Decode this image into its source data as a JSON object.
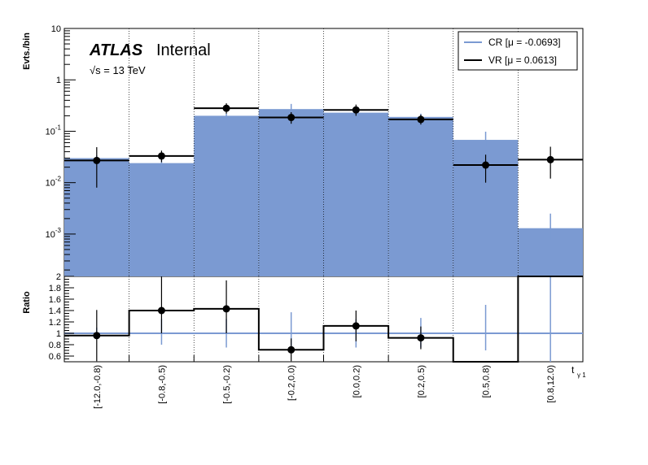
{
  "labels": {
    "experiment": "ATLAS",
    "status": "Internal",
    "energy": "√s = 13 TeV"
  },
  "colors": {
    "cr_fill": "#7b9ad2",
    "cr_line": "#7b9ad2",
    "vr_line": "#000000"
  },
  "chart_data": {
    "type": "bar",
    "xlabel": "t",
    "xlabel_sub": "γ 1",
    "categories": [
      "[-12.0,-0.8)",
      "[-0.8,-0.5)",
      "[-0.5,-0.2)",
      "[-0.2,0.0)",
      "[0.0,0.2)",
      "[0.2,0.5)",
      "[0.5,0.8)",
      "[0.8,12.0)"
    ],
    "top": {
      "ylabel": "Evts./bin",
      "yscale": "log",
      "ylim": [
        0.00015,
        10
      ],
      "yticks": [
        {
          "value": 0.001,
          "base": "10",
          "exp": "-3"
        },
        {
          "value": 0.01,
          "base": "10",
          "exp": "-2"
        },
        {
          "value": 0.1,
          "base": "10",
          "exp": "-1"
        },
        {
          "value": 1,
          "base": "1",
          "exp": ""
        },
        {
          "value": 10,
          "base": "10",
          "exp": ""
        }
      ],
      "series": [
        {
          "name": "CR [μ = -0.0693]",
          "style": "filled-histogram",
          "values": [
            0.03,
            0.024,
            0.2,
            0.27,
            0.23,
            0.19,
            0.068,
            0.0013
          ],
          "err_low": [
            0.004,
            0.004,
            0.02,
            0.03,
            0.03,
            0.02,
            0.015,
            0.0005
          ],
          "err_high": [
            0.004,
            0.004,
            0.02,
            0.07,
            0.03,
            0.03,
            0.03,
            0.0012
          ]
        },
        {
          "name": "VR [μ = 0.0613]",
          "style": "points",
          "values": [
            0.027,
            0.033,
            0.28,
            0.185,
            0.26,
            0.17,
            0.022,
            0.028
          ],
          "err_low": [
            0.019,
            0.008,
            0.06,
            0.045,
            0.06,
            0.035,
            0.012,
            0.016
          ],
          "err_high": [
            0.022,
            0.009,
            0.07,
            0.05,
            0.07,
            0.04,
            0.013,
            0.022
          ]
        }
      ],
      "legend_position": "top-right"
    },
    "ratio": {
      "ylabel": "Ratio",
      "ylim": [
        0.5,
        2.0
      ],
      "yticks": [
        "0.6",
        "0.8",
        "1",
        "1.2",
        "1.4",
        "1.6",
        "1.8",
        "2"
      ],
      "reference": 1.0,
      "values": [
        0.96,
        1.4,
        1.43,
        0.71,
        1.13,
        0.92,
        0.5,
        2.0
      ],
      "err_low": [
        0.45,
        0.4,
        0.43,
        0.2,
        0.27,
        0.2,
        0.0,
        0.0
      ],
      "err_high": [
        0.45,
        0.6,
        0.5,
        0.2,
        0.27,
        0.2,
        0.0,
        0.0
      ],
      "cr_err_low": [
        0.1,
        0.2,
        0.25,
        0.3,
        0.25,
        0.25,
        0.3,
        0.0
      ],
      "cr_err_high": [
        0.1,
        0.25,
        0.25,
        0.37,
        0.25,
        0.27,
        0.5,
        0.0
      ]
    }
  }
}
